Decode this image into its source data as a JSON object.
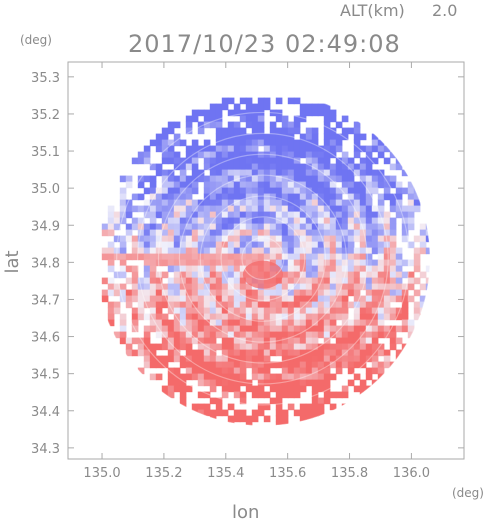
{
  "header": {
    "alt_label": "ALT(km)",
    "alt_value": "2.0",
    "timestamp": "2017/10/23 02:49:08",
    "unit_y": "(deg)",
    "unit_x": "(deg)"
  },
  "chart_data": {
    "type": "heatmap",
    "xlabel": "lon",
    "ylabel": "lat",
    "xlim": [
      134.89,
      136.17
    ],
    "ylim": [
      34.27,
      35.34
    ],
    "x_ticks": [
      135.0,
      135.2,
      135.4,
      135.6,
      135.8,
      136.0
    ],
    "x_tick_labels": [
      "135.0",
      "135.2",
      "135.4",
      "135.6",
      "135.8",
      "136.0"
    ],
    "y_ticks": [
      34.3,
      34.4,
      34.5,
      34.6,
      34.7,
      34.8,
      34.9,
      35.0,
      35.1,
      35.2,
      35.3
    ],
    "y_tick_labels": [
      "34.3",
      "34.4",
      "34.5",
      "34.6",
      "34.7",
      "34.8",
      "34.9",
      "35.0",
      "35.1",
      "35.2",
      "35.3"
    ],
    "radar_center": [
      135.52,
      34.81
    ],
    "radar_range_deg": 0.54,
    "colors": {
      "negative": "#6f74f2",
      "positive": "#f46a6a",
      "near_zero": "#f3f3fb",
      "axis": "#aaaaaa"
    },
    "description_regions": [
      {
        "region": "north of center",
        "sign": "negative"
      },
      {
        "region": "south of center",
        "sign": "positive"
      }
    ]
  }
}
